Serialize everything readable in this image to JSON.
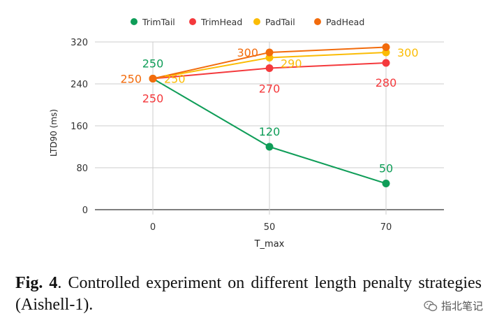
{
  "chart_data": {
    "type": "line",
    "title": "",
    "categories": [
      "0",
      "50",
      "70"
    ],
    "xlabel": "T_max",
    "ylabel": "LTD90 (ms)",
    "ylim": [
      0,
      320
    ],
    "yticks": [
      0,
      80,
      160,
      240,
      320
    ],
    "grid": true,
    "legend_position": "top",
    "series": [
      {
        "name": "TrimTail",
        "color": "#0f9d58",
        "values": [
          250,
          120,
          50
        ]
      },
      {
        "name": "TrimHead",
        "color": "#f4393c",
        "values": [
          250,
          270,
          280
        ]
      },
      {
        "name": "PadTail",
        "color": "#fbbc05",
        "values": [
          250,
          290,
          300
        ]
      },
      {
        "name": "PadHead",
        "color": "#f26b0c",
        "values": [
          250,
          300,
          310
        ]
      }
    ],
    "data_labels": [
      {
        "series": "TrimTail",
        "index": 0,
        "text": "250"
      },
      {
        "series": "TrimTail",
        "index": 1,
        "text": "120"
      },
      {
        "series": "TrimTail",
        "index": 2,
        "text": "50"
      },
      {
        "series": "TrimHead",
        "index": 0,
        "text": "250"
      },
      {
        "series": "TrimHead",
        "index": 1,
        "text": "270"
      },
      {
        "series": "TrimHead",
        "index": 2,
        "text": "280"
      },
      {
        "series": "PadTail",
        "index": 0,
        "text": "250"
      },
      {
        "series": "PadTail",
        "index": 1,
        "text": "290"
      },
      {
        "series": "PadTail",
        "index": 2,
        "text": "300"
      },
      {
        "series": "PadHead",
        "index": 0,
        "text": "250"
      },
      {
        "series": "PadHead",
        "index": 1,
        "text": "300"
      }
    ]
  },
  "caption": {
    "label": "Fig. 4",
    "text": ".  Controlled experiment on different length penalty strategies (Aishell-1)."
  },
  "watermark": {
    "text": "指北笔记",
    "icon": "wechat-icon"
  }
}
